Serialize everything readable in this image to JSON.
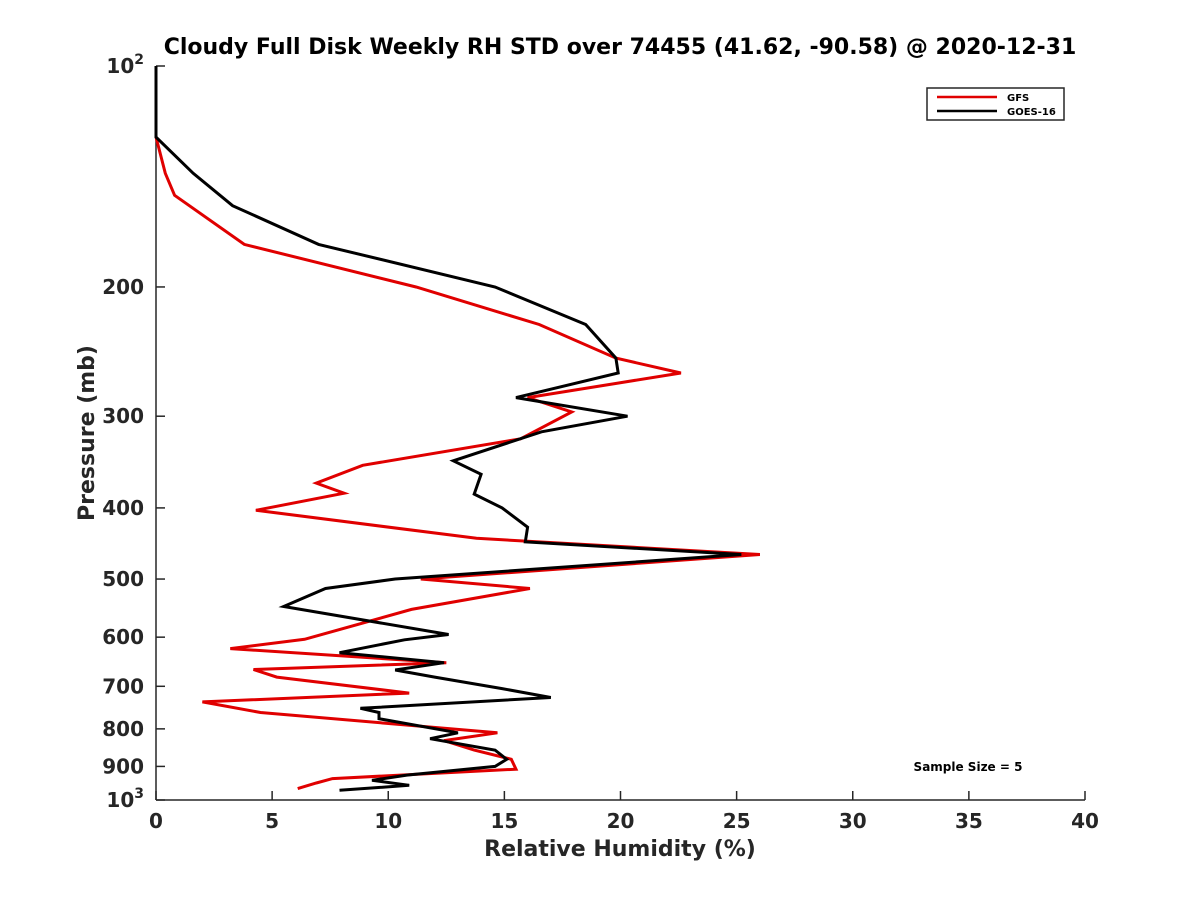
{
  "chart_data": {
    "type": "line",
    "title": "Cloudy Full Disk Weekly RH STD over 74455 (41.62, -90.58) @ 2020-12-31",
    "xlabel": "Relative Humidity (%)",
    "ylabel": "Pressure (mb)",
    "xlim": [
      0,
      40
    ],
    "ylim": [
      100,
      1000
    ],
    "y_scale": "log",
    "y_reversed": true,
    "grid": false,
    "legend_position": "top-right",
    "x_ticks": [
      "0",
      "5",
      "10",
      "15",
      "20",
      "25",
      "30",
      "35",
      "40"
    ],
    "y_ticks": [
      {
        "value": 100,
        "base": "10",
        "exp": "2"
      },
      {
        "value": 200,
        "label": "200"
      },
      {
        "value": 300,
        "label": "300"
      },
      {
        "value": 400,
        "label": "400"
      },
      {
        "value": 500,
        "label": "500"
      },
      {
        "value": 600,
        "label": "600"
      },
      {
        "value": 700,
        "label": "700"
      },
      {
        "value": 800,
        "label": "800"
      },
      {
        "value": 900,
        "label": "900"
      },
      {
        "value": 1000,
        "base": "10",
        "exp": "3"
      }
    ],
    "series": [
      {
        "name": "GFS",
        "color": "#e00000",
        "points": [
          [
            0.0,
            100
          ],
          [
            0.0,
            125
          ],
          [
            0.4,
            140
          ],
          [
            0.8,
            150
          ],
          [
            3.8,
            175
          ],
          [
            11.2,
            200
          ],
          [
            16.5,
            225
          ],
          [
            19.8,
            250
          ],
          [
            22.6,
            262
          ],
          [
            16.0,
            283
          ],
          [
            17.9,
            296
          ],
          [
            15.7,
            322
          ],
          [
            8.9,
            350
          ],
          [
            6.9,
            370
          ],
          [
            8.1,
            382
          ],
          [
            4.3,
            403
          ],
          [
            13.8,
            440
          ],
          [
            26.0,
            463
          ],
          [
            11.4,
            500
          ],
          [
            16.1,
            515
          ],
          [
            11.0,
            550
          ],
          [
            6.4,
            604
          ],
          [
            3.2,
            622
          ],
          [
            12.5,
            650
          ],
          [
            4.2,
            664
          ],
          [
            5.2,
            680
          ],
          [
            10.9,
            715
          ],
          [
            2.0,
            735
          ],
          [
            4.5,
            760
          ],
          [
            14.7,
            810
          ],
          [
            12.4,
            830
          ],
          [
            13.7,
            855
          ],
          [
            15.3,
            880
          ],
          [
            15.5,
            908
          ],
          [
            7.6,
            935
          ],
          [
            6.9,
            948
          ],
          [
            6.1,
            965
          ]
        ]
      },
      {
        "name": "GOES-16",
        "color": "#000000",
        "points": [
          [
            0.0,
            100
          ],
          [
            0.0,
            125
          ],
          [
            1.6,
            140
          ],
          [
            3.3,
            155
          ],
          [
            7.0,
            175
          ],
          [
            14.6,
            200
          ],
          [
            18.5,
            225
          ],
          [
            19.8,
            250
          ],
          [
            19.9,
            262
          ],
          [
            15.5,
            283
          ],
          [
            20.3,
            300
          ],
          [
            16.6,
            315
          ],
          [
            12.8,
            345
          ],
          [
            14.0,
            360
          ],
          [
            13.7,
            383
          ],
          [
            14.9,
            400
          ],
          [
            16.0,
            425
          ],
          [
            15.9,
            445
          ],
          [
            25.2,
            463
          ],
          [
            10.3,
            500
          ],
          [
            7.3,
            515
          ],
          [
            5.5,
            545
          ],
          [
            12.6,
            595
          ],
          [
            10.7,
            605
          ],
          [
            7.9,
            630
          ],
          [
            12.4,
            650
          ],
          [
            10.3,
            665
          ],
          [
            12.0,
            680
          ],
          [
            14.9,
            705
          ],
          [
            17.0,
            725
          ],
          [
            8.8,
            750
          ],
          [
            9.6,
            760
          ],
          [
            9.6,
            775
          ],
          [
            13.0,
            810
          ],
          [
            11.8,
            825
          ],
          [
            14.6,
            855
          ],
          [
            15.1,
            880
          ],
          [
            14.6,
            900
          ],
          [
            10.8,
            925
          ],
          [
            9.3,
            940
          ],
          [
            10.9,
            955
          ],
          [
            7.9,
            970
          ]
        ]
      }
    ],
    "annotations": [
      "Sample Size = 5"
    ]
  }
}
